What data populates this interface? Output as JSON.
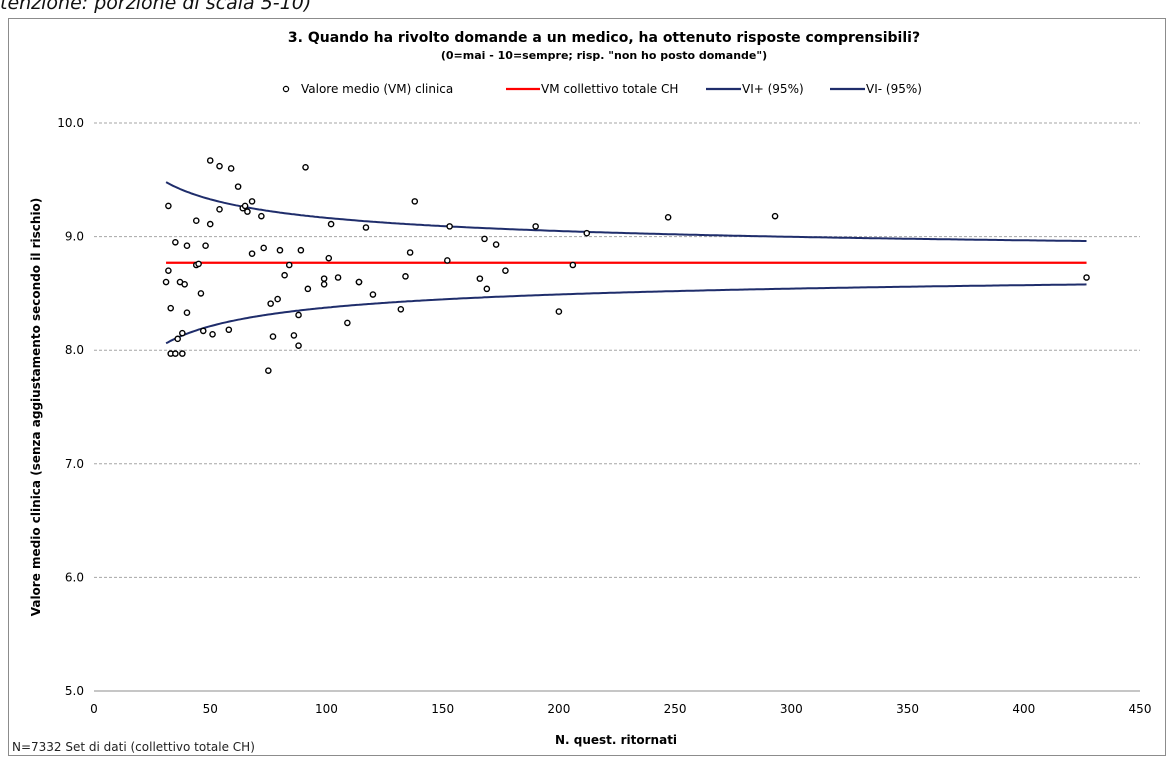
{
  "top_caption": "tenzione: porzione di scala 5-10)",
  "footer_note": "N=7332 Set di dati (collettivo totale CH)",
  "chart_data": {
    "type": "scatter",
    "title": "3. Quando ha rivolto domande a un medico, ha ottenuto risposte comprensibili?",
    "subtitle": "(0=mai - 10=sempre; risp. \"non ho posto domande\")",
    "xlabel": "N. quest. ritornati",
    "ylabel": "Valore medio clinica (senza aggiustamento secondo il rischio)",
    "xlim": [
      0,
      450
    ],
    "ylim": [
      5.0,
      10.0
    ],
    "x_ticks": [
      "0",
      "50",
      "100",
      "150",
      "200",
      "250",
      "300",
      "350",
      "400",
      "450"
    ],
    "y_ticks": [
      "5.0",
      "6.0",
      "7.0",
      "8.0",
      "9.0",
      "10.0"
    ],
    "grid": "horizontal dashed",
    "legend_position": "top",
    "colors": {
      "points": "#000000",
      "mean_line": "#ff0000",
      "ci_lines": "#1f2d6b"
    },
    "legend": [
      {
        "label": "Valore medio (VM) clinica",
        "kind": "marker"
      },
      {
        "label": "VM collettivo totale CH",
        "kind": "line",
        "color": "#ff0000"
      },
      {
        "label": "VI+ (95%)",
        "kind": "line",
        "color": "#1f2d6b"
      },
      {
        "label": "VI- (95%)",
        "kind": "line",
        "color": "#1f2d6b"
      }
    ],
    "mean_value": 8.77,
    "ci_range_x": [
      31,
      427
    ],
    "ci_coefficient": 3.95,
    "points": [
      [
        31,
        8.6
      ],
      [
        32,
        9.27
      ],
      [
        32,
        8.7
      ],
      [
        33,
        8.37
      ],
      [
        33,
        7.97
      ],
      [
        35,
        8.95
      ],
      [
        35,
        7.97
      ],
      [
        36,
        8.1
      ],
      [
        37,
        8.6
      ],
      [
        38,
        8.15
      ],
      [
        38,
        7.97
      ],
      [
        39,
        8.58
      ],
      [
        40,
        8.92
      ],
      [
        40,
        8.33
      ],
      [
        44,
        9.14
      ],
      [
        44,
        8.75
      ],
      [
        45,
        8.76
      ],
      [
        46,
        8.5
      ],
      [
        47,
        8.17
      ],
      [
        48,
        8.92
      ],
      [
        50,
        9.67
      ],
      [
        50,
        9.11
      ],
      [
        51,
        8.14
      ],
      [
        54,
        9.62
      ],
      [
        54,
        9.24
      ],
      [
        58,
        8.18
      ],
      [
        59,
        9.6
      ],
      [
        62,
        9.44
      ],
      [
        64,
        9.25
      ],
      [
        65,
        9.27
      ],
      [
        66,
        9.22
      ],
      [
        68,
        9.31
      ],
      [
        68,
        8.85
      ],
      [
        72,
        9.18
      ],
      [
        73,
        8.9
      ],
      [
        75,
        7.82
      ],
      [
        76,
        8.41
      ],
      [
        77,
        8.12
      ],
      [
        79,
        8.45
      ],
      [
        80,
        8.88
      ],
      [
        82,
        8.66
      ],
      [
        84,
        8.75
      ],
      [
        86,
        8.13
      ],
      [
        88,
        8.31
      ],
      [
        88,
        8.04
      ],
      [
        89,
        8.88
      ],
      [
        91,
        9.61
      ],
      [
        92,
        8.54
      ],
      [
        99,
        8.63
      ],
      [
        99,
        8.58
      ],
      [
        101,
        8.81
      ],
      [
        102,
        9.11
      ],
      [
        105,
        8.64
      ],
      [
        109,
        8.24
      ],
      [
        114,
        8.6
      ],
      [
        114,
        8.6
      ],
      [
        117,
        9.08
      ],
      [
        120,
        8.49
      ],
      [
        132,
        8.36
      ],
      [
        134,
        8.65
      ],
      [
        136,
        8.86
      ],
      [
        138,
        9.31
      ],
      [
        152,
        8.79
      ],
      [
        153,
        9.09
      ],
      [
        166,
        8.63
      ],
      [
        168,
        8.98
      ],
      [
        169,
        8.54
      ],
      [
        173,
        8.93
      ],
      [
        177,
        8.7
      ],
      [
        190,
        9.09
      ],
      [
        200,
        8.34
      ],
      [
        206,
        8.75
      ],
      [
        212,
        9.03
      ],
      [
        247,
        9.17
      ],
      [
        293,
        9.18
      ],
      [
        427,
        8.64
      ]
    ]
  }
}
